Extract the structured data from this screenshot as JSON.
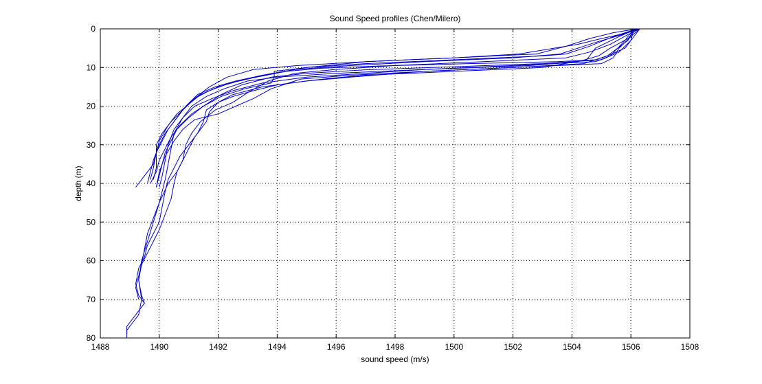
{
  "chart_data": {
    "type": "line",
    "title": "Sound Speed profiles (Chen/Milero)",
    "xlabel": "sound speed (m/s)",
    "ylabel": "depth (m)",
    "xlim": [
      1488,
      1508
    ],
    "ylim": [
      0,
      80
    ],
    "y_reversed": true,
    "grid": true,
    "grid_style": "dotted",
    "xticks": [
      1488,
      1490,
      1492,
      1494,
      1496,
      1498,
      1500,
      1502,
      1504,
      1506,
      1508
    ],
    "yticks": [
      0,
      10,
      20,
      30,
      40,
      50,
      60,
      70,
      80
    ],
    "xtick_labels": [
      "1488",
      "1490",
      "1492",
      "1494",
      "1496",
      "1498",
      "1500",
      "1502",
      "1504",
      "1506",
      "1508"
    ],
    "ytick_labels": [
      "0",
      "10",
      "20",
      "30",
      "40",
      "50",
      "60",
      "70",
      "80"
    ],
    "line_color": "#0000cc",
    "series": [
      {
        "points": [
          [
            1506.3,
            0
          ],
          [
            1506.1,
            2
          ],
          [
            1505.8,
            5
          ],
          [
            1505.2,
            7
          ],
          [
            1504.8,
            8
          ],
          [
            1503.5,
            8.5
          ],
          [
            1500.5,
            9
          ],
          [
            1497.5,
            9.6
          ],
          [
            1495.5,
            10.2
          ],
          [
            1494.3,
            11
          ],
          [
            1493.3,
            12.5
          ],
          [
            1492.4,
            14
          ],
          [
            1491.7,
            16
          ],
          [
            1491.2,
            18
          ],
          [
            1490.8,
            21
          ],
          [
            1490.5,
            24
          ],
          [
            1490.2,
            27
          ],
          [
            1490,
            30
          ],
          [
            1489.8,
            34
          ],
          [
            1489.7,
            37
          ],
          [
            1489.6,
            40
          ]
        ]
      },
      {
        "points": [
          [
            1506.2,
            0
          ],
          [
            1505.7,
            1.5
          ],
          [
            1504.8,
            3.5
          ],
          [
            1503.6,
            6.5
          ],
          [
            1502,
            7.5
          ],
          [
            1499,
            8.5
          ],
          [
            1496.5,
            9.5
          ],
          [
            1494.6,
            10.5
          ],
          [
            1493.5,
            12
          ],
          [
            1492.6,
            13.5
          ],
          [
            1491.9,
            15
          ],
          [
            1491.3,
            17
          ],
          [
            1490.9,
            20
          ],
          [
            1490.6,
            23
          ],
          [
            1490.3,
            26
          ],
          [
            1490.1,
            29
          ],
          [
            1489.9,
            32
          ],
          [
            1489.8,
            35
          ],
          [
            1489.5,
            38
          ],
          [
            1489.2,
            41
          ]
        ]
      },
      {
        "points": [
          [
            1506.1,
            0
          ],
          [
            1506,
            3
          ],
          [
            1505.6,
            6
          ],
          [
            1505,
            8
          ],
          [
            1503,
            9
          ],
          [
            1500,
            9.8
          ],
          [
            1497,
            10.6
          ],
          [
            1495,
            11.5
          ],
          [
            1493.8,
            12.5
          ],
          [
            1492.8,
            14.5
          ],
          [
            1492.1,
            17
          ],
          [
            1491.6,
            19.5
          ],
          [
            1491.1,
            22
          ],
          [
            1490.7,
            25
          ],
          [
            1490.4,
            28
          ],
          [
            1490.2,
            31
          ],
          [
            1490,
            34
          ],
          [
            1489.9,
            37
          ],
          [
            1489.7,
            40
          ]
        ]
      },
      {
        "points": [
          [
            1506.2,
            0
          ],
          [
            1505.4,
            2
          ],
          [
            1504.6,
            4.5
          ],
          [
            1503.8,
            6.5
          ],
          [
            1503,
            7
          ],
          [
            1500,
            8
          ],
          [
            1497,
            9
          ],
          [
            1495,
            10
          ],
          [
            1493.9,
            11
          ],
          [
            1493.9,
            12.5
          ],
          [
            1493.8,
            14
          ],
          [
            1492.9,
            15.5
          ],
          [
            1492.1,
            17.5
          ],
          [
            1491.5,
            20
          ],
          [
            1491,
            23
          ],
          [
            1490.6,
            26
          ],
          [
            1490.4,
            29
          ],
          [
            1490.2,
            32
          ],
          [
            1490.1,
            35
          ],
          [
            1490,
            38
          ],
          [
            1489.9,
            41
          ]
        ]
      },
      {
        "points": [
          [
            1506.1,
            0
          ],
          [
            1505.9,
            3
          ],
          [
            1505.2,
            7
          ],
          [
            1504.4,
            9
          ],
          [
            1502,
            10
          ],
          [
            1499,
            11
          ],
          [
            1496.5,
            12
          ],
          [
            1494.8,
            13
          ],
          [
            1493.8,
            15.5
          ],
          [
            1493.2,
            18
          ],
          [
            1492.6,
            20
          ],
          [
            1492,
            22
          ],
          [
            1491.2,
            23.5
          ],
          [
            1490.8,
            26
          ],
          [
            1490.5,
            29
          ],
          [
            1490.2,
            33
          ],
          [
            1490,
            37
          ],
          [
            1489.9,
            41
          ]
        ]
      },
      {
        "points": [
          [
            1506.3,
            0
          ],
          [
            1505.9,
            1
          ],
          [
            1505,
            2.5
          ],
          [
            1504.2,
            4
          ],
          [
            1503.4,
            5
          ],
          [
            1502.2,
            6.5
          ],
          [
            1500,
            7.5
          ],
          [
            1497,
            8.5
          ],
          [
            1495,
            10
          ],
          [
            1493.5,
            12
          ],
          [
            1492.7,
            13.5
          ],
          [
            1492,
            15
          ],
          [
            1491.4,
            17
          ],
          [
            1491,
            19.5
          ],
          [
            1490.6,
            22
          ],
          [
            1490.3,
            25
          ],
          [
            1490,
            29
          ],
          [
            1489.9,
            32
          ],
          [
            1489.8,
            36
          ],
          [
            1489.7,
            39
          ]
        ]
      },
      {
        "points": [
          [
            1506.2,
            0
          ],
          [
            1505.9,
            2.5
          ],
          [
            1505.3,
            5
          ],
          [
            1504.9,
            7
          ],
          [
            1504.2,
            8.5
          ],
          [
            1502.6,
            9.5
          ],
          [
            1499,
            10.5
          ],
          [
            1496,
            11.5
          ],
          [
            1494,
            12.5
          ],
          [
            1493,
            13.5
          ],
          [
            1492.2,
            15.5
          ],
          [
            1491.6,
            17.5
          ],
          [
            1491.1,
            20
          ],
          [
            1490.8,
            23
          ],
          [
            1490.5,
            26
          ],
          [
            1490.3,
            30
          ],
          [
            1490.2,
            34
          ],
          [
            1490.1,
            38
          ],
          [
            1490,
            41
          ]
        ]
      },
      {
        "points": [
          [
            1506.3,
            0
          ],
          [
            1505.9,
            1.5
          ],
          [
            1505.3,
            4
          ],
          [
            1504.6,
            6
          ],
          [
            1503.8,
            7.5
          ],
          [
            1501,
            8.5
          ],
          [
            1498,
            9.5
          ],
          [
            1496,
            10.5
          ],
          [
            1494.6,
            11.5
          ],
          [
            1493.7,
            13.5
          ],
          [
            1493,
            16.5
          ],
          [
            1492.5,
            19
          ],
          [
            1491.9,
            21
          ],
          [
            1491.4,
            24
          ],
          [
            1491.1,
            27
          ],
          [
            1490.9,
            30
          ],
          [
            1490.8,
            34
          ],
          [
            1490.6,
            37
          ],
          [
            1490.3,
            40
          ],
          [
            1490,
            45
          ],
          [
            1489.8,
            50
          ],
          [
            1489.6,
            55
          ],
          [
            1489.4,
            60
          ],
          [
            1489.3,
            65
          ],
          [
            1489.4,
            70
          ],
          [
            1489.3,
            74
          ],
          [
            1489.1,
            76
          ],
          [
            1488.9,
            78
          ],
          [
            1488.9,
            80
          ]
        ]
      },
      {
        "points": [
          [
            1506.3,
            0
          ],
          [
            1506,
            2
          ],
          [
            1505.6,
            5
          ],
          [
            1505.4,
            7.5
          ],
          [
            1505,
            9
          ],
          [
            1502,
            10
          ],
          [
            1499,
            11
          ],
          [
            1496.5,
            12.5
          ],
          [
            1495,
            13.5
          ],
          [
            1494,
            14.5
          ],
          [
            1493.2,
            16
          ],
          [
            1492.5,
            17.5
          ],
          [
            1492,
            19
          ],
          [
            1491.6,
            21
          ],
          [
            1491.5,
            24
          ],
          [
            1491.3,
            27
          ],
          [
            1491,
            30
          ],
          [
            1490.7,
            33
          ],
          [
            1490.5,
            36
          ],
          [
            1490.3,
            39
          ],
          [
            1490.2,
            42
          ],
          [
            1490.1,
            46
          ],
          [
            1490,
            50
          ],
          [
            1489.8,
            53
          ],
          [
            1489.6,
            56
          ],
          [
            1489.5,
            59
          ],
          [
            1489.3,
            62
          ],
          [
            1489.2,
            66
          ],
          [
            1489.3,
            69
          ],
          [
            1489.5,
            71
          ],
          [
            1489.2,
            74
          ],
          [
            1488.9,
            77
          ],
          [
            1488.9,
            79
          ]
        ]
      },
      {
        "points": [
          [
            1506.1,
            0
          ],
          [
            1505.8,
            3
          ],
          [
            1505.3,
            7
          ],
          [
            1504.8,
            8.5
          ],
          [
            1502,
            9.5
          ],
          [
            1499,
            10.5
          ],
          [
            1497,
            11.5
          ],
          [
            1495,
            12.5
          ],
          [
            1493.5,
            14
          ],
          [
            1492.5,
            16
          ],
          [
            1491.8,
            18
          ],
          [
            1491.2,
            20
          ],
          [
            1490.8,
            23
          ],
          [
            1490.5,
            27
          ],
          [
            1490.4,
            31
          ],
          [
            1490.3,
            35
          ],
          [
            1490.2,
            39
          ],
          [
            1490.1,
            42
          ],
          [
            1490,
            45
          ],
          [
            1489.8,
            49
          ],
          [
            1489.6,
            53
          ],
          [
            1489.5,
            57
          ],
          [
            1489.4,
            61
          ],
          [
            1489.3,
            65
          ],
          [
            1489.4,
            69
          ],
          [
            1489.5,
            71
          ]
        ]
      },
      {
        "points": [
          [
            1506.2,
            0
          ],
          [
            1505.6,
            2
          ],
          [
            1504.8,
            5
          ],
          [
            1504.5,
            8
          ],
          [
            1503,
            10
          ],
          [
            1500,
            11
          ],
          [
            1497,
            12
          ],
          [
            1495.8,
            12.8
          ],
          [
            1495,
            13.5
          ],
          [
            1493.5,
            15
          ],
          [
            1492.5,
            17
          ],
          [
            1492,
            19
          ],
          [
            1491.7,
            21.5
          ],
          [
            1491.6,
            24
          ],
          [
            1491.4,
            26
          ],
          [
            1491.2,
            28
          ],
          [
            1491,
            31
          ],
          [
            1490.8,
            34
          ],
          [
            1490.6,
            37
          ],
          [
            1490.5,
            40
          ],
          [
            1490.4,
            44
          ],
          [
            1490.2,
            48
          ],
          [
            1490,
            52
          ],
          [
            1489.8,
            55
          ],
          [
            1489.6,
            58
          ],
          [
            1489.4,
            61
          ],
          [
            1489.3,
            64
          ],
          [
            1489.2,
            67
          ],
          [
            1489.3,
            70
          ]
        ]
      },
      {
        "points": [
          [
            1506.2,
            0
          ],
          [
            1505.4,
            1
          ],
          [
            1504.6,
            2.5
          ],
          [
            1503.8,
            4.5
          ],
          [
            1502.8,
            6.5
          ],
          [
            1500,
            7.5
          ],
          [
            1497,
            8.5
          ],
          [
            1494.7,
            9.5
          ],
          [
            1493.2,
            10.5
          ],
          [
            1492.3,
            12.5
          ],
          [
            1491.7,
            15
          ],
          [
            1491.2,
            18
          ],
          [
            1490.8,
            21
          ],
          [
            1490.4,
            24
          ],
          [
            1490.1,
            27
          ],
          [
            1489.9,
            30
          ],
          [
            1489.9,
            33
          ],
          [
            1489.9,
            36
          ],
          [
            1489.8,
            39
          ]
        ]
      }
    ]
  }
}
